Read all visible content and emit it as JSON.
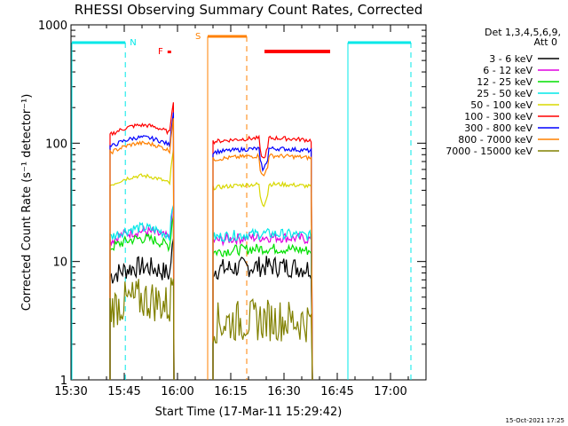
{
  "chart_data": {
    "type": "line",
    "title": "RHESSI Observing Summary Count Rates, Corrected",
    "xlabel": "Start Time (17-Mar-11 15:29:42)",
    "ylabel": "Corrected Count Rate (s⁻¹ detector⁻¹)",
    "y_scale": "log",
    "ylim": [
      1,
      1000
    ],
    "xlim_minutes": [
      0,
      100
    ],
    "x_ticks": [
      {
        "label": "15:30",
        "t": 0
      },
      {
        "label": "15:45",
        "t": 15
      },
      {
        "label": "16:00",
        "t": 30
      },
      {
        "label": "16:15",
        "t": 45
      },
      {
        "label": "16:30",
        "t": 60
      },
      {
        "label": "16:45",
        "t": 75
      },
      {
        "label": "17:00",
        "t": 90
      }
    ],
    "y_ticks": [
      {
        "label": "1",
        "v": 1
      },
      {
        "label": "10",
        "v": 10
      },
      {
        "label": "100",
        "v": 100
      },
      {
        "label": "1000",
        "v": 1000
      }
    ],
    "legend_title": [
      "Det 1,3,4,5,6,9,",
      "Att 0"
    ],
    "series": [
      {
        "name": "3 - 6 keV",
        "color": "#000000",
        "seg1": 7.5,
        "seg2": 8.5
      },
      {
        "name": "6 - 12 keV",
        "color": "#e000e0",
        "seg1": 15,
        "seg2": 15
      },
      {
        "name": "12 - 25 keV",
        "color": "#00e000",
        "seg1": 13,
        "seg2": 12
      },
      {
        "name": "25 - 50 keV",
        "color": "#00e8e8",
        "seg1": 16,
        "seg2": 16
      },
      {
        "name": "50 - 100 keV",
        "color": "#d8d800",
        "seg1": 44,
        "seg2": 42
      },
      {
        "name": "100 - 300 keV",
        "color": "#ff0000",
        "seg1": 118,
        "seg2": 103
      },
      {
        "name": "300 - 800 keV",
        "color": "#0000ff",
        "seg1": 93,
        "seg2": 84
      },
      {
        "name": "800 - 7000 keV",
        "color": "#ff8000",
        "seg1": 83,
        "seg2": 73
      },
      {
        "name": "7000 - 15000 keV",
        "color": "#808000",
        "seg1": 4,
        "seg2": 3
      }
    ],
    "segments": [
      {
        "start": 11,
        "end": 29
      },
      {
        "start": 40,
        "end": 68
      }
    ],
    "flags": [
      {
        "label": "N",
        "color": "#00e8e8"
      },
      {
        "label": "F",
        "color": "#ff0000"
      },
      {
        "label": "S",
        "color": "#ff8000"
      }
    ],
    "timestamp": "15-Oct-2021 17:25"
  }
}
